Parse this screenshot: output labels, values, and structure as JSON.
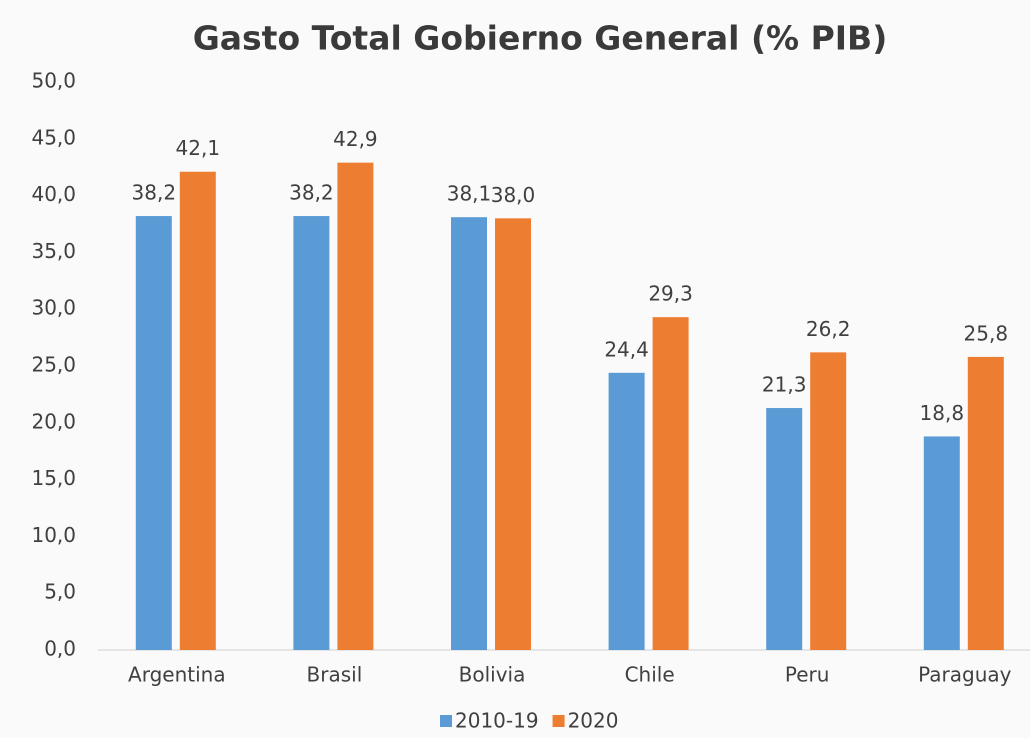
{
  "chart_data": {
    "type": "bar",
    "title": "Gasto Total Gobierno General (% PIB)",
    "categories": [
      "Argentina",
      "Brasil",
      "Bolivia",
      "Chile",
      "Peru",
      "Paraguay"
    ],
    "series": [
      {
        "name": "2010-19",
        "color": "#5b9bd5",
        "values": [
          38.2,
          38.2,
          38.1,
          24.4,
          21.3,
          18.8
        ],
        "value_labels": [
          "38,2",
          "38,2",
          "38,1",
          "24,4",
          "21,3",
          "18,8"
        ]
      },
      {
        "name": "2020",
        "color": "#ed7d31",
        "values": [
          42.1,
          42.9,
          38.0,
          29.3,
          26.2,
          25.8
        ],
        "value_labels": [
          "42,1",
          "42,9",
          "38,0",
          "29,3",
          "26,2",
          "25,8"
        ]
      }
    ],
    "ylim": [
      0,
      50
    ],
    "yticks": [
      {
        "value": 0,
        "label": "0,0"
      },
      {
        "value": 5,
        "label": "5,0"
      },
      {
        "value": 10,
        "label": "10,0"
      },
      {
        "value": 15,
        "label": "15,0"
      },
      {
        "value": 20,
        "label": "20,0"
      },
      {
        "value": 25,
        "label": "25,0"
      },
      {
        "value": 30,
        "label": "30,0"
      },
      {
        "value": 35,
        "label": "35,0"
      },
      {
        "value": 40,
        "label": "40,0"
      },
      {
        "value": 45,
        "label": "45,0"
      },
      {
        "value": 50,
        "label": "50,0"
      }
    ],
    "grid": false,
    "legend": "bottom"
  }
}
